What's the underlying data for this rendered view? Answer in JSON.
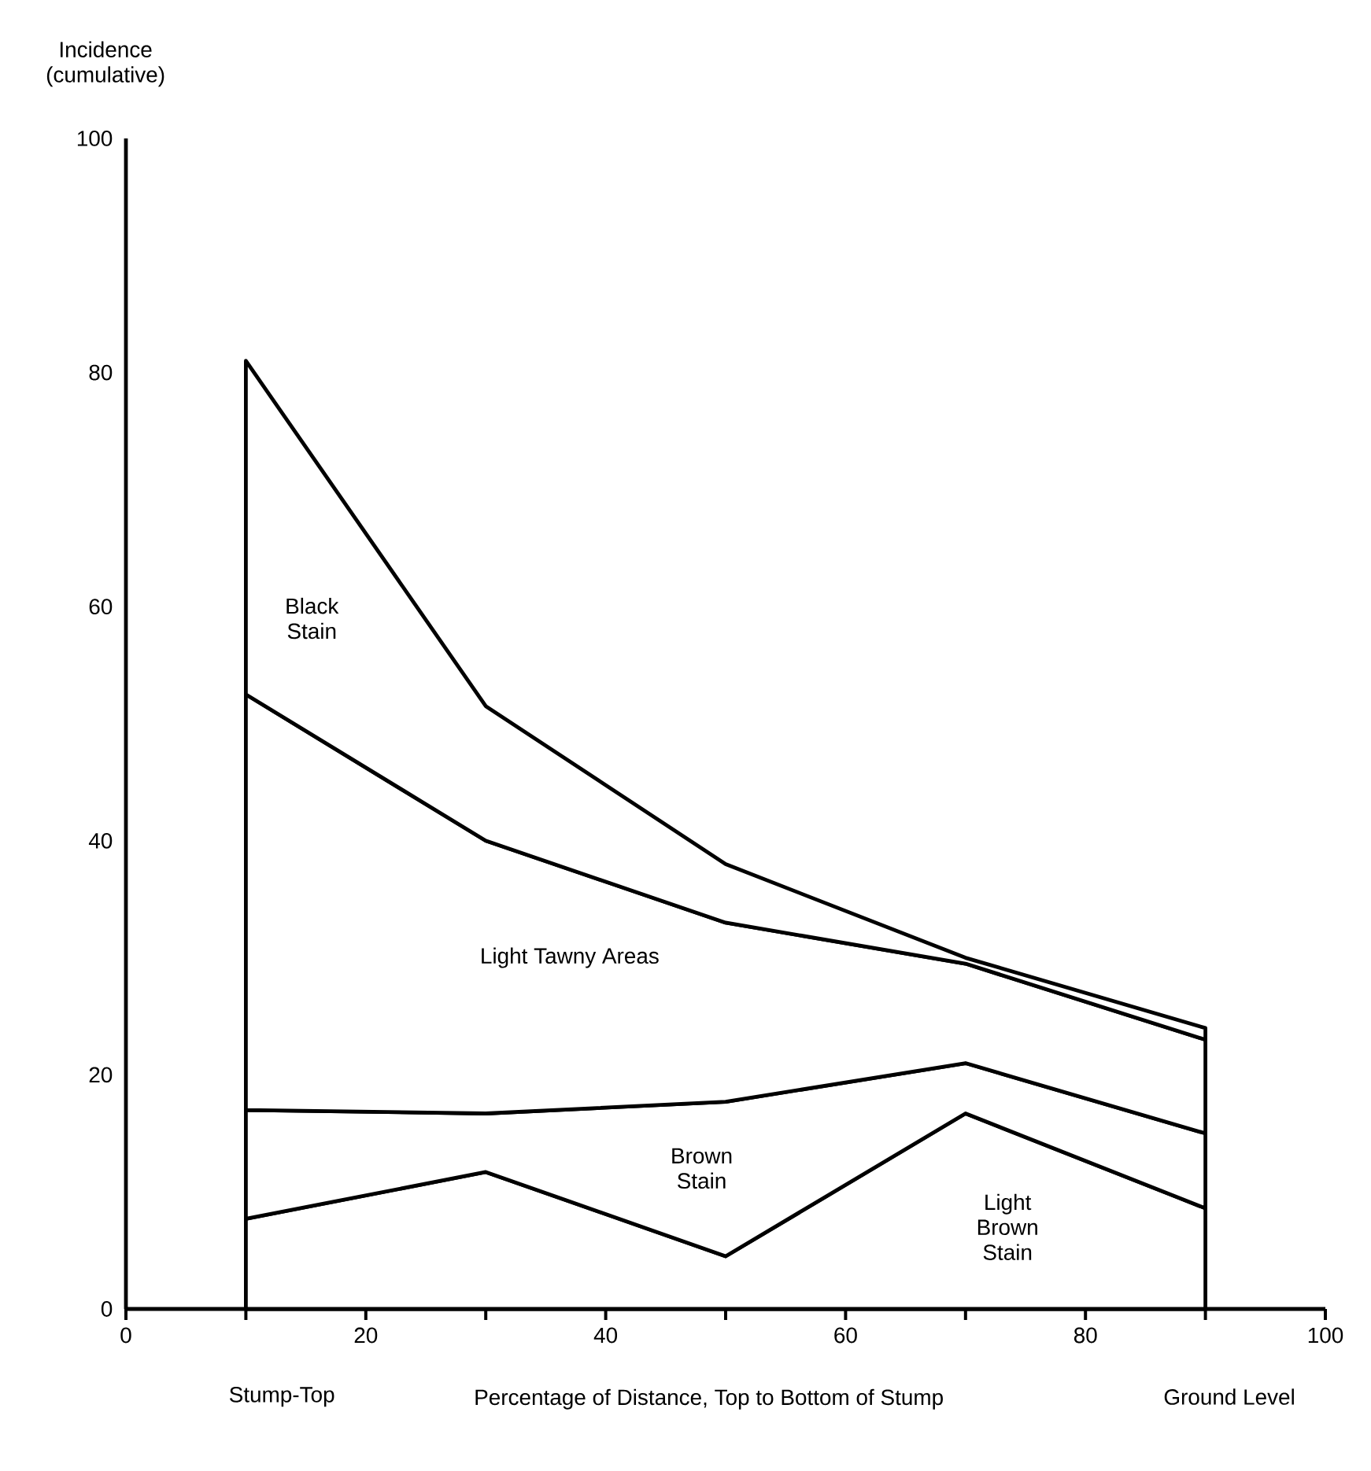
{
  "chart_data": {
    "type": "area",
    "xlabel": "Percentage of Distance, Top to Bottom of Stump",
    "ylabel": "Incidence (cumulative)",
    "x": [
      10,
      30,
      50,
      70,
      90
    ],
    "stacked": true,
    "series": [
      {
        "color": "#000000",
        "values": [
          7.7,
          11.7,
          4.5,
          16.7,
          8.6
        ]
      },
      {
        "color": "#000000",
        "values": [
          9.3,
          5,
          13.2,
          4.3,
          6.4
        ]
      },
      {
        "color": "#000000",
        "values": [
          35.5,
          23.3,
          15.3,
          8.5,
          8
        ]
      },
      {
        "color": "#000000",
        "values": [
          28.5,
          11.5,
          5,
          0.5,
          1
        ]
      }
    ],
    "xlim": [
      0,
      100
    ],
    "ylim": [
      0,
      100
    ],
    "xticks": [
      0,
      {
        "value": 10,
        "label": null
      },
      20,
      {
        "value": 30,
        "label": null
      },
      40,
      {
        "value": 50,
        "label": null
      },
      60,
      {
        "value": 70,
        "label": null
      },
      80,
      {
        "value": 90,
        "label": null
      },
      100
    ],
    "yticks": [
      0,
      20,
      40,
      60,
      80,
      100
    ],
    "annotations": [
      "Black Stain",
      "Light Tawny Areas",
      "Brown Stain",
      "Light Brown Stain",
      "Stump-Top",
      "Ground Level"
    ]
  }
}
